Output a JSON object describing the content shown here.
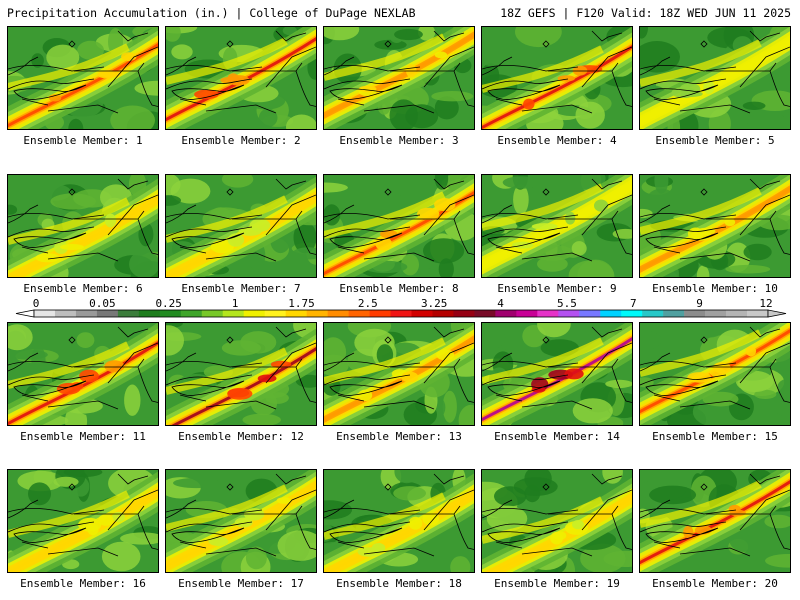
{
  "header": {
    "left": "Precipitation Accumulation (in.) | College of DuPage NEXLAB",
    "right": "18Z GEFS | F120 Valid: 18Z WED JUN 11 2025"
  },
  "panels": [
    {
      "label": "Ensemble Member: 1"
    },
    {
      "label": "Ensemble Member: 2"
    },
    {
      "label": "Ensemble Member: 3"
    },
    {
      "label": "Ensemble Member: 4"
    },
    {
      "label": "Ensemble Member: 5"
    },
    {
      "label": "Ensemble Member: 6"
    },
    {
      "label": "Ensemble Member: 7"
    },
    {
      "label": "Ensemble Member: 8"
    },
    {
      "label": "Ensemble Member: 9"
    },
    {
      "label": "Ensemble Member: 10"
    },
    {
      "label": "Ensemble Member: 11"
    },
    {
      "label": "Ensemble Member: 12"
    },
    {
      "label": "Ensemble Member: 13"
    },
    {
      "label": "Ensemble Member: 14"
    },
    {
      "label": "Ensemble Member: 15"
    },
    {
      "label": "Ensemble Member: 16"
    },
    {
      "label": "Ensemble Member: 17"
    },
    {
      "label": "Ensemble Member: 18"
    },
    {
      "label": "Ensemble Member: 19"
    },
    {
      "label": "Ensemble Member: 20"
    }
  ],
  "colorbar": {
    "labels": [
      "0",
      "0.05",
      "0.25",
      "1",
      "1.75",
      "2.5",
      "3.25",
      "4",
      "5.5",
      "7",
      "9",
      "12"
    ],
    "colors": [
      "#e6e6e6",
      "#bebebe",
      "#9a9a9a",
      "#787878",
      "#3c7d3c",
      "#1e7d1e",
      "#228b22",
      "#3fa52a",
      "#78c828",
      "#b4e61e",
      "#f0f000",
      "#fff21e",
      "#ffd700",
      "#ffb400",
      "#ff8c00",
      "#ff6400",
      "#ff3c00",
      "#f01414",
      "#d20000",
      "#b40000",
      "#960014",
      "#780a28",
      "#a0006e",
      "#c80096",
      "#e632c8",
      "#b450f0",
      "#7878ff",
      "#00d2ff",
      "#00fafa",
      "#28c8c8",
      "#50a0a0",
      "#8c8c8c",
      "#a0a0a0",
      "#b4b4b4",
      "#c8c8c8"
    ]
  }
}
